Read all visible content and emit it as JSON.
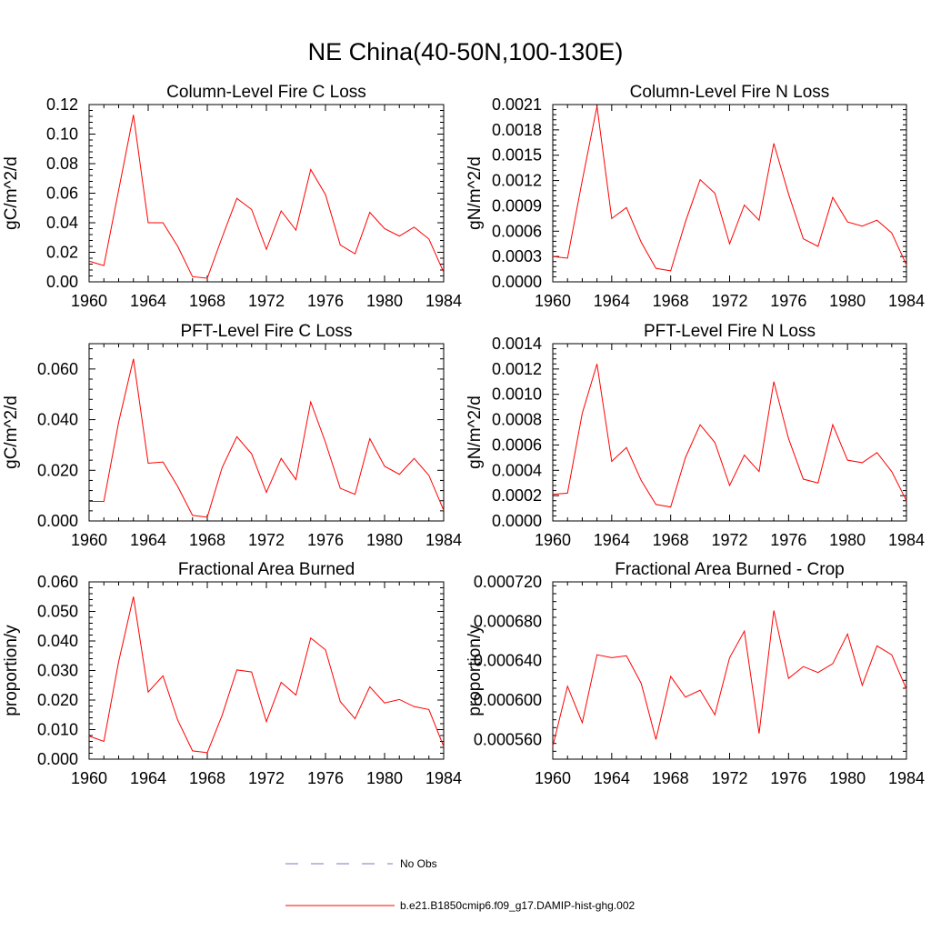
{
  "figure": {
    "title": "NE China(40-50N,100-130E)"
  },
  "legend": {
    "entries": [
      {
        "label": "No Obs",
        "color": "#7777cc",
        "dash": true
      },
      {
        "label": "b.e21.B1850cmip6.f09_g17.DAMIP-hist-ghg.002",
        "color": "#ff0000",
        "dash": false
      }
    ]
  },
  "chart_data": [
    {
      "type": "line",
      "title": "Column-Level Fire C Loss",
      "ylabel": "gC/m^2/d",
      "xlabel": "",
      "xlim": [
        1960,
        1984
      ],
      "ylim": [
        0,
        0.12
      ],
      "xticks": [
        1960,
        1964,
        1968,
        1972,
        1976,
        1980,
        1984
      ],
      "yticks": [
        0,
        0.02,
        0.04,
        0.06,
        0.08,
        0.1,
        0.12
      ],
      "ytick_labels": [
        "0.00",
        "0.02",
        "0.04",
        "0.06",
        "0.08",
        "0.10",
        "0.12"
      ],
      "x": [
        1960,
        1961,
        1962,
        1963,
        1964,
        1965,
        1966,
        1967,
        1968,
        1969,
        1970,
        1971,
        1972,
        1973,
        1974,
        1975,
        1976,
        1977,
        1978,
        1979,
        1980,
        1981,
        1982,
        1983,
        1984
      ],
      "series": [
        {
          "color": "#ff0000",
          "values": [
            0.014,
            0.011,
            0.062,
            0.113,
            0.04,
            0.04,
            0.024,
            0.0035,
            0.0025,
            0.03,
            0.0565,
            0.049,
            0.022,
            0.048,
            0.035,
            0.076,
            0.059,
            0.025,
            0.019,
            0.047,
            0.036,
            0.031,
            0.037,
            0.029,
            0.0065
          ]
        }
      ]
    },
    {
      "type": "line",
      "title": "Column-Level Fire N Loss",
      "ylabel": "gN/m^2/d",
      "xlabel": "",
      "xlim": [
        1960,
        1984
      ],
      "ylim": [
        0,
        0.0021
      ],
      "xticks": [
        1960,
        1964,
        1968,
        1972,
        1976,
        1980,
        1984
      ],
      "yticks": [
        0,
        0.0003,
        0.0006,
        0.0009,
        0.0012,
        0.0015,
        0.0018,
        0.0021
      ],
      "ytick_labels": [
        "0.0000",
        "0.0003",
        "0.0006",
        "0.0009",
        "0.0012",
        "0.0015",
        "0.0018",
        "0.0021"
      ],
      "x": [
        1960,
        1961,
        1962,
        1963,
        1964,
        1965,
        1966,
        1967,
        1968,
        1969,
        1970,
        1971,
        1972,
        1973,
        1974,
        1975,
        1976,
        1977,
        1978,
        1979,
        1980,
        1981,
        1982,
        1983,
        1984
      ],
      "series": [
        {
          "color": "#ff0000",
          "values": [
            0.0003,
            0.00028,
            0.0012,
            0.00208,
            0.00075,
            0.00088,
            0.00047,
            0.00016,
            0.00013,
            0.00071,
            0.00121,
            0.00105,
            0.00045,
            0.00091,
            0.00073,
            0.00164,
            0.00104,
            0.00051,
            0.00042,
            0.001,
            0.00071,
            0.00066,
            0.00073,
            0.00058,
            0.0002
          ]
        }
      ]
    },
    {
      "type": "line",
      "title": "PFT-Level Fire C Loss",
      "ylabel": "gC/m^2/d",
      "xlabel": "",
      "xlim": [
        1960,
        1984
      ],
      "ylim": [
        0,
        0.07
      ],
      "xticks": [
        1960,
        1964,
        1968,
        1972,
        1976,
        1980,
        1984
      ],
      "yticks": [
        0,
        0.02,
        0.04,
        0.06
      ],
      "ytick_labels": [
        "0.000",
        "0.020",
        "0.040",
        "0.060"
      ],
      "x": [
        1960,
        1961,
        1962,
        1963,
        1964,
        1965,
        1966,
        1967,
        1968,
        1969,
        1970,
        1971,
        1972,
        1973,
        1974,
        1975,
        1976,
        1977,
        1978,
        1979,
        1980,
        1981,
        1982,
        1983,
        1984
      ],
      "series": [
        {
          "color": "#ff0000",
          "values": [
            0.0077,
            0.0077,
            0.039,
            0.064,
            0.0228,
            0.0233,
            0.0136,
            0.0022,
            0.0015,
            0.021,
            0.0333,
            0.0265,
            0.0113,
            0.0247,
            0.0163,
            0.047,
            0.031,
            0.0129,
            0.0105,
            0.0325,
            0.0216,
            0.0184,
            0.0247,
            0.018,
            0.0042
          ]
        }
      ]
    },
    {
      "type": "line",
      "title": "PFT-Level Fire N Loss",
      "ylabel": "gN/m^2/d",
      "xlabel": "",
      "xlim": [
        1960,
        1984
      ],
      "ylim": [
        0,
        0.0014
      ],
      "xticks": [
        1960,
        1964,
        1968,
        1972,
        1976,
        1980,
        1984
      ],
      "yticks": [
        0,
        0.0002,
        0.0004,
        0.0006,
        0.0008,
        0.001,
        0.0012,
        0.0014
      ],
      "ytick_labels": [
        "0.0000",
        "0.0002",
        "0.0004",
        "0.0006",
        "0.0008",
        "0.0010",
        "0.0012",
        "0.0014"
      ],
      "x": [
        1960,
        1961,
        1962,
        1963,
        1964,
        1965,
        1966,
        1967,
        1968,
        1969,
        1970,
        1971,
        1972,
        1973,
        1974,
        1975,
        1976,
        1977,
        1978,
        1979,
        1980,
        1981,
        1982,
        1983,
        1984
      ],
      "series": [
        {
          "color": "#ff0000",
          "values": [
            0.00021,
            0.00022,
            0.00085,
            0.00124,
            0.00047,
            0.00058,
            0.00032,
            0.00013,
            0.00011,
            0.0005,
            0.00076,
            0.00062,
            0.00028,
            0.00052,
            0.00039,
            0.0011,
            0.00065,
            0.00033,
            0.0003,
            0.00076,
            0.00048,
            0.00046,
            0.00054,
            0.00039,
            0.00016
          ]
        }
      ]
    },
    {
      "type": "line",
      "title": "Fractional Area Burned",
      "ylabel": "proportion/y",
      "xlabel": "",
      "xlim": [
        1960,
        1984
      ],
      "ylim": [
        0,
        0.06
      ],
      "xticks": [
        1960,
        1964,
        1968,
        1972,
        1976,
        1980,
        1984
      ],
      "yticks": [
        0,
        0.01,
        0.02,
        0.03,
        0.04,
        0.05,
        0.06
      ],
      "ytick_labels": [
        "0.000",
        "0.010",
        "0.020",
        "0.030",
        "0.040",
        "0.050",
        "0.060"
      ],
      "x": [
        1960,
        1961,
        1962,
        1963,
        1964,
        1965,
        1966,
        1967,
        1968,
        1969,
        1970,
        1971,
        1972,
        1973,
        1974,
        1975,
        1976,
        1977,
        1978,
        1979,
        1980,
        1981,
        1982,
        1983,
        1984
      ],
      "series": [
        {
          "color": "#ff0000",
          "values": [
            0.0078,
            0.006,
            0.033,
            0.055,
            0.0227,
            0.0282,
            0.0132,
            0.0028,
            0.0022,
            0.0148,
            0.0302,
            0.0295,
            0.0127,
            0.026,
            0.0217,
            0.041,
            0.037,
            0.0195,
            0.0137,
            0.0245,
            0.019,
            0.0202,
            0.0178,
            0.0168,
            0.0043
          ]
        }
      ]
    },
    {
      "type": "line",
      "title": "Fractional Area Burned - Crop",
      "ylabel": "proportion/y",
      "xlabel": "",
      "xlim": [
        1960,
        1984
      ],
      "ylim": [
        0.00054,
        0.00072
      ],
      "xticks": [
        1960,
        1964,
        1968,
        1972,
        1976,
        1980,
        1984
      ],
      "yticks": [
        0.00056,
        0.0006,
        0.00064,
        0.00068,
        0.00072
      ],
      "ytick_labels": [
        "0.000560",
        "0.000600",
        "0.000640",
        "0.000680",
        "0.000720"
      ],
      "x": [
        1960,
        1961,
        1962,
        1963,
        1964,
        1965,
        1966,
        1967,
        1968,
        1969,
        1970,
        1971,
        1972,
        1973,
        1974,
        1975,
        1976,
        1977,
        1978,
        1979,
        1980,
        1981,
        1982,
        1983,
        1984
      ],
      "series": [
        {
          "color": "#ff0000",
          "values": [
            0.000553,
            0.000614,
            0.000577,
            0.000646,
            0.000643,
            0.000645,
            0.000617,
            0.00056,
            0.000624,
            0.000603,
            0.00061,
            0.000585,
            0.000643,
            0.00067,
            0.000566,
            0.000691,
            0.000622,
            0.000634,
            0.000628,
            0.000637,
            0.000667,
            0.000615,
            0.000655,
            0.000646,
            0.000611
          ]
        }
      ]
    }
  ]
}
